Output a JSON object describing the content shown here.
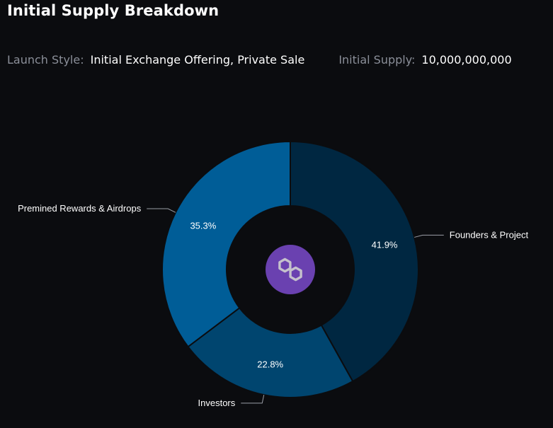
{
  "header": {
    "title": "Initial Supply Breakdown"
  },
  "meta": {
    "launch_style_label": "Launch Style:",
    "launch_style_value": "Initial Exchange Offering, Private Sale",
    "initial_supply_label": "Initial Supply:",
    "initial_supply_value": "10,000,000,000"
  },
  "center_icon": "polygon-logo-icon",
  "chart_data": {
    "type": "pie",
    "donut": true,
    "start_angle_deg": 0,
    "direction": "clockwise",
    "slices": [
      {
        "label": "Founders & Project",
        "value": 41.9,
        "display": "41.9%",
        "color": "#002741"
      },
      {
        "label": "Investors",
        "value": 22.8,
        "display": "22.8%",
        "color": "#00456f"
      },
      {
        "label": "Premined Rewards & Airdrops",
        "value": 35.3,
        "display": "35.3%",
        "color": "#005d97"
      }
    ],
    "colors": {
      "background": "#0b0c0f",
      "leader_line": "#9a9ea6",
      "center_circle": "#6a41b0",
      "center_glyph": "#c5c1cc"
    }
  }
}
